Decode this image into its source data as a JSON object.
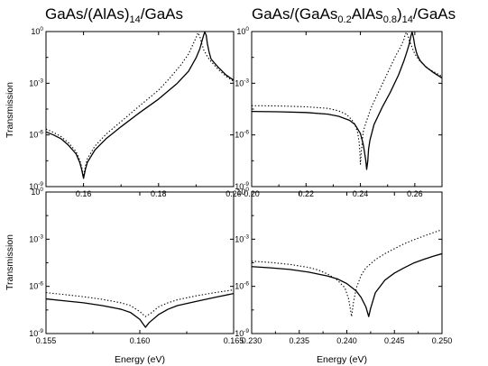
{
  "titles": [
    {
      "segments": [
        {
          "t": "GaAs/(AlAs)"
        },
        {
          "t": "14",
          "sub": true
        },
        {
          "t": "/GaAs"
        }
      ]
    },
    {
      "segments": [
        {
          "t": "GaAs/(GaAs"
        },
        {
          "t": "0.2",
          "sub": true
        },
        {
          "t": "AlAs"
        },
        {
          "t": "0.8",
          "sub": true
        },
        {
          "t": ")"
        },
        {
          "t": "14",
          "sub": true
        },
        {
          "t": "/GaAs"
        }
      ]
    }
  ],
  "chart_data": [
    {
      "type": "line",
      "panel": "top-left",
      "xlabel": "",
      "ylabel": "Transmission",
      "xlim": [
        0.15,
        0.2
      ],
      "ylim": [
        1e-09,
        1
      ],
      "yscale": "log",
      "xticks": [
        0.16,
        0.18,
        0.2
      ],
      "xtick_labels": [
        "0.16",
        "0.18",
        "0.20"
      ],
      "yticks": [
        1e-09,
        1e-06,
        0.001,
        1
      ],
      "ytick_labels": [
        {
          "base": "10",
          "exp": "-9"
        },
        {
          "base": "10",
          "exp": "-6"
        },
        {
          "base": "10",
          "exp": "-3"
        },
        {
          "base": "10",
          "exp": "0"
        }
      ],
      "series": [
        {
          "style": "solid",
          "x": [
            0.15,
            0.152,
            0.154,
            0.156,
            0.158,
            0.159,
            0.1595,
            0.16,
            0.1605,
            0.161,
            0.163,
            0.166,
            0.17,
            0.175,
            0.18,
            0.185,
            0.188,
            0.19,
            0.191,
            0.1915,
            0.192,
            0.1923,
            0.1927,
            0.193,
            0.1935,
            0.194,
            0.196,
            0.198,
            0.2
          ],
          "y": [
            1.5e-06,
            1e-06,
            6e-07,
            2.5e-07,
            8e-08,
            2.5e-08,
            1e-08,
            3e-09,
            1e-08,
            2.5e-08,
            1.3e-07,
            6e-07,
            3e-06,
            2e-05,
            0.00012,
            0.001,
            0.005,
            0.03,
            0.1,
            0.25,
            0.6,
            0.95,
            0.6,
            0.2,
            0.06,
            0.025,
            0.008,
            0.003,
            0.0015
          ]
        },
        {
          "style": "dotted",
          "x": [
            0.15,
            0.152,
            0.154,
            0.156,
            0.158,
            0.159,
            0.1595,
            0.16,
            0.1605,
            0.161,
            0.163,
            0.166,
            0.17,
            0.175,
            0.18,
            0.183,
            0.186,
            0.188,
            0.189,
            0.19,
            0.1905,
            0.191,
            0.1915,
            0.192,
            0.193,
            0.194,
            0.196,
            0.198,
            0.2
          ],
          "y": [
            2.2e-06,
            1.4e-06,
            8e-07,
            3.5e-07,
            1.1e-07,
            3.5e-08,
            1.4e-08,
            4e-09,
            1.5e-08,
            4e-08,
            2.2e-07,
            1.1e-06,
            6e-06,
            5e-05,
            0.0004,
            0.002,
            0.012,
            0.05,
            0.15,
            0.45,
            0.85,
            0.5,
            0.2,
            0.09,
            0.035,
            0.018,
            0.006,
            0.0025,
            0.0013
          ]
        }
      ]
    },
    {
      "type": "line",
      "panel": "top-right",
      "xlabel": "",
      "ylabel": "",
      "xlim": [
        0.2,
        0.27
      ],
      "ylim": [
        1e-09,
        1
      ],
      "yscale": "log",
      "xticks": [
        0.2,
        0.22,
        0.24,
        0.26
      ],
      "xtick_labels": [
        "0.20",
        "0.22",
        "0.24",
        "0.26"
      ],
      "yticks": [
        1e-09,
        1e-06,
        0.001,
        1
      ],
      "ytick_labels": [
        {
          "base": "10",
          "exp": "-9"
        },
        {
          "base": "10",
          "exp": "-6"
        },
        {
          "base": "10",
          "exp": "-3"
        },
        {
          "base": "10",
          "exp": "0"
        }
      ],
      "series": [
        {
          "style": "solid",
          "x": [
            0.2,
            0.21,
            0.22,
            0.228,
            0.232,
            0.236,
            0.238,
            0.24,
            0.241,
            0.2415,
            0.242,
            0.2423,
            0.2427,
            0.243,
            0.2435,
            0.245,
            0.248,
            0.251,
            0.254,
            0.256,
            0.257,
            0.258,
            0.2585,
            0.259,
            0.2595,
            0.26,
            0.2605,
            0.261,
            0.262,
            0.264,
            0.267,
            0.27
          ],
          "y": [
            2.3e-05,
            2.2e-05,
            2e-05,
            1.6e-05,
            1.2e-05,
            7e-06,
            4e-06,
            1.2e-06,
            3e-07,
            1e-07,
            3e-08,
            1e-08,
            3e-08,
            1.5e-07,
            5e-07,
            4e-06,
            4e-05,
            0.0003,
            0.003,
            0.02,
            0.06,
            0.2,
            0.5,
            0.95,
            0.45,
            0.15,
            0.07,
            0.04,
            0.02,
            0.009,
            0.004,
            0.002
          ]
        },
        {
          "style": "dotted",
          "x": [
            0.2,
            0.21,
            0.22,
            0.228,
            0.232,
            0.235,
            0.237,
            0.238,
            0.239,
            0.2395,
            0.2398,
            0.24,
            0.2403,
            0.2408,
            0.241,
            0.242,
            0.244,
            0.247,
            0.25,
            0.253,
            0.255,
            0.256,
            0.2565,
            0.257,
            0.2575,
            0.258,
            0.259,
            0.26,
            0.262,
            0.265,
            0.27
          ],
          "y": [
            5e-05,
            4.8e-05,
            4.3e-05,
            3.5e-05,
            2.5e-05,
            1.5e-05,
            7e-06,
            4e-06,
            1.3e-06,
            4e-07,
            1e-07,
            2e-08,
            1e-07,
            6e-07,
            1.5e-06,
            5e-06,
            4e-05,
            0.0004,
            0.004,
            0.04,
            0.15,
            0.35,
            0.7,
            0.9,
            0.55,
            0.3,
            0.12,
            0.05,
            0.018,
            0.007,
            0.0025
          ]
        }
      ]
    },
    {
      "type": "line",
      "panel": "bottom-left",
      "xlabel": "Energy (eV)",
      "ylabel": "Transmission",
      "xlim": [
        0.155,
        0.165
      ],
      "ylim": [
        1e-09,
        1
      ],
      "yscale": "log",
      "xticks": [
        0.155,
        0.16,
        0.165
      ],
      "xtick_labels": [
        "0.155",
        "0.160",
        "0.165"
      ],
      "yticks": [
        1e-09,
        1e-06,
        0.001,
        1
      ],
      "ytick_labels": [
        {
          "base": "10",
          "exp": "-9"
        },
        {
          "base": "10",
          "exp": "-6"
        },
        {
          "base": "10",
          "exp": "-3"
        },
        {
          "base": "10",
          "exp": "0"
        }
      ],
      "series": [
        {
          "style": "solid",
          "x": [
            0.155,
            0.156,
            0.157,
            0.158,
            0.159,
            0.1595,
            0.16,
            0.1603,
            0.1605,
            0.161,
            0.1615,
            0.162,
            0.163,
            0.164,
            0.165
          ],
          "y": [
            1.6e-07,
            1.2e-07,
            9e-08,
            6e-08,
            3.5e-08,
            2.2e-08,
            8e-09,
            2.5e-09,
            5e-09,
            1.6e-08,
            3.5e-08,
            6e-08,
            1.1e-07,
            2e-07,
            3.5e-07
          ]
        },
        {
          "style": "dotted",
          "x": [
            0.155,
            0.156,
            0.157,
            0.158,
            0.159,
            0.1595,
            0.16,
            0.1603,
            0.1606,
            0.161,
            0.1615,
            0.162,
            0.163,
            0.164,
            0.165
          ],
          "y": [
            4e-07,
            3e-07,
            2.2e-07,
            1.5e-07,
            9e-08,
            6e-08,
            2.5e-08,
            1.2e-08,
            2e-08,
            5e-08,
            9e-08,
            1.4e-07,
            2.5e-07,
            4e-07,
            6e-07
          ]
        }
      ]
    },
    {
      "type": "line",
      "panel": "bottom-right",
      "xlabel": "Energy (eV)",
      "ylabel": "",
      "xlim": [
        0.23,
        0.25
      ],
      "ylim": [
        1e-09,
        1
      ],
      "yscale": "log",
      "xticks": [
        0.23,
        0.235,
        0.24,
        0.245,
        0.25
      ],
      "xtick_labels": [
        "0.230",
        "0.235",
        "0.240",
        "0.245",
        "0.250"
      ],
      "yticks": [
        1e-09,
        1e-06,
        0.001,
        1
      ],
      "ytick_labels": [
        {
          "base": "10",
          "exp": "-9"
        },
        {
          "base": "10",
          "exp": "-6"
        },
        {
          "base": "10",
          "exp": "-3"
        },
        {
          "base": "10",
          "exp": "0"
        }
      ],
      "series": [
        {
          "style": "solid",
          "x": [
            0.23,
            0.232,
            0.234,
            0.236,
            0.238,
            0.239,
            0.24,
            0.241,
            0.2415,
            0.242,
            0.2423,
            0.2425,
            0.243,
            0.244,
            0.245,
            0.246,
            0.247,
            0.248,
            0.249,
            0.25
          ],
          "y": [
            1.8e-05,
            1.5e-05,
            1.2e-05,
            8e-06,
            4.5e-06,
            3e-06,
            1.5e-06,
            5e-07,
            2e-07,
            5e-08,
            1.2e-08,
            4e-08,
            4e-07,
            2.5e-06,
            7e-06,
            1.5e-05,
            3e-05,
            5e-05,
            8e-05,
            0.00012
          ]
        },
        {
          "style": "dotted",
          "x": [
            0.23,
            0.232,
            0.234,
            0.236,
            0.237,
            0.238,
            0.239,
            0.2398,
            0.2402,
            0.2405,
            0.2407,
            0.241,
            0.2415,
            0.242,
            0.243,
            0.244,
            0.245,
            0.246,
            0.247,
            0.248,
            0.249,
            0.25
          ],
          "y": [
            4e-05,
            3.3e-05,
            2.5e-05,
            1.6e-05,
            1.1e-05,
            6e-06,
            2.5e-06,
            8e-07,
            1.5e-07,
            1.2e-08,
            1e-07,
            8e-07,
            5e-06,
            1.5e-05,
            5e-05,
            0.00012,
            0.00025,
            0.0005,
            0.0009,
            0.0015,
            0.0025,
            0.004
          ]
        }
      ]
    }
  ]
}
